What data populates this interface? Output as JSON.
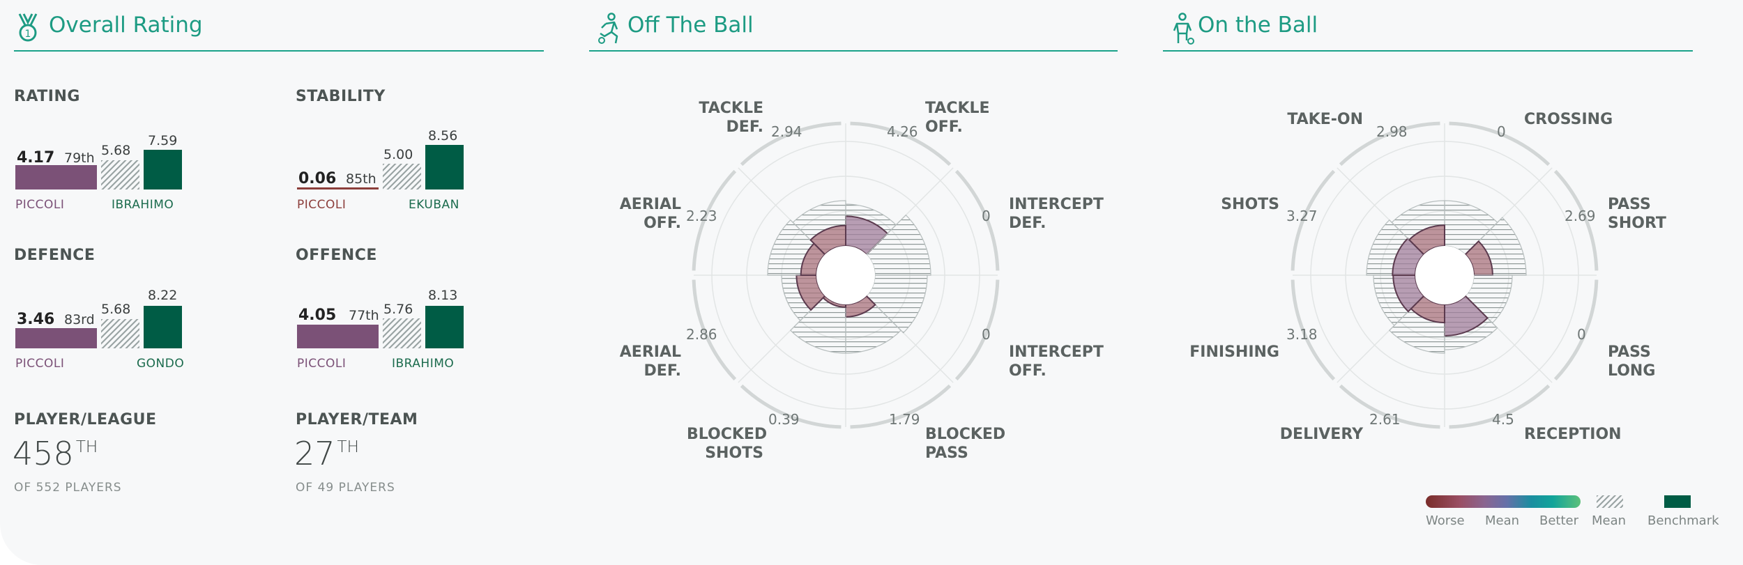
{
  "sections": {
    "overall": {
      "title": "Overall Rating",
      "icon": "medal-icon"
    },
    "off_ball": {
      "title": "Off The Ball",
      "icon": "runner-icon"
    },
    "on_ball": {
      "title": "On the Ball",
      "icon": "player-with-ball-icon"
    }
  },
  "metrics": [
    {
      "label": "RATING",
      "player_value": "4.17",
      "percentile": "79th",
      "mean_value": "5.68",
      "benchmark_value": "7.59",
      "player_name": "PICCOLI",
      "benchmark_name": "IBRAHIMO",
      "player_level": 4.17,
      "mean_level": 5.68,
      "benchmark_level": 7.59
    },
    {
      "label": "STABILITY",
      "player_value": "0.06",
      "percentile": "85th",
      "mean_value": "5.00",
      "benchmark_value": "8.56",
      "player_name": "PICCOLI",
      "benchmark_name": "EKUBAN",
      "player_level": 0.06,
      "mean_level": 5.0,
      "benchmark_level": 8.56
    },
    {
      "label": "DEFENCE",
      "player_value": "3.46",
      "percentile": "83rd",
      "mean_value": "5.68",
      "benchmark_value": "8.22",
      "player_name": "PICCOLI",
      "benchmark_name": "GONDO",
      "player_level": 3.46,
      "mean_level": 5.68,
      "benchmark_level": 8.22
    },
    {
      "label": "OFFENCE",
      "player_value": "4.05",
      "percentile": "77th",
      "mean_value": "5.76",
      "benchmark_value": "8.13",
      "player_name": "PICCOLI",
      "benchmark_name": "IBRAHIMO",
      "player_level": 4.05,
      "mean_level": 5.76,
      "benchmark_level": 8.13
    }
  ],
  "ranks": [
    {
      "label": "PLAYER/LEAGUE",
      "value": "458",
      "suffix": "TH",
      "caption": "OF 552 PLAYERS"
    },
    {
      "label": "PLAYER/TEAM",
      "value": "27",
      "suffix": "TH",
      "caption": "OF 49 PLAYERS"
    }
  ],
  "off_ball": {
    "axes": [
      {
        "line1": "TACKLE",
        "line2": "OFF.",
        "value": "4.26",
        "level": 4.26,
        "mean": 6.0
      },
      {
        "line1": "INTERCEPT",
        "line2": "DEF.",
        "value": "0",
        "level": 0,
        "mean": 8.0
      },
      {
        "line1": "INTERCEPT",
        "line2": "OFF.",
        "value": "0",
        "level": 0,
        "mean": 7.5
      },
      {
        "line1": "BLOCKED",
        "line2": "PASS",
        "value": "1.79",
        "level": 1.79,
        "mean": 7.0
      },
      {
        "line1": "BLOCKED",
        "line2": "SHOTS",
        "value": "0.39",
        "level": 0.39,
        "mean": 7.0
      },
      {
        "line1": "AERIAL",
        "line2": "DEF.",
        "value": "2.86",
        "level": 2.86,
        "mean": 5.0
      },
      {
        "line1": "AERIAL",
        "line2": "OFF.",
        "value": "2.23",
        "level": 2.23,
        "mean": 7.0
      },
      {
        "line1": "TACKLE",
        "line2": "DEF.",
        "value": "2.94",
        "level": 2.94,
        "mean": 6.5
      }
    ]
  },
  "on_ball": {
    "axes": [
      {
        "line1": "CROSSING",
        "line2": "",
        "value": "0",
        "level": 0,
        "mean": 6.5
      },
      {
        "line1": "PASS",
        "line2": "SHORT",
        "value": "2.69",
        "level": 2.69,
        "mean": 7.5
      },
      {
        "line1": "PASS",
        "line2": "LONG",
        "value": "0",
        "level": 0,
        "mean": 5.5
      },
      {
        "line1": "RECEPTION",
        "line2": "",
        "value": "4.5",
        "level": 4.5,
        "mean": 6.5
      },
      {
        "line1": "DELIVERY",
        "line2": "",
        "value": "2.61",
        "level": 2.61,
        "mean": 7.0
      },
      {
        "line1": "FINISHING",
        "line2": "",
        "value": "3.18",
        "level": 3.18,
        "mean": 6.0
      },
      {
        "line1": "SHOTS",
        "line2": "",
        "value": "3.27",
        "level": 3.27,
        "mean": 7.0
      },
      {
        "line1": "TAKE-ON",
        "line2": "",
        "value": "2.98",
        "level": 2.98,
        "mean": 6.5
      }
    ]
  },
  "legend": {
    "worse": "Worse",
    "mean_scale": "Mean",
    "better": "Better",
    "mean_hatch": "Mean",
    "benchmark": "Benchmark"
  },
  "colors": {
    "accent": "#1aa28a",
    "player": "#7b5177",
    "benchmark": "#005c45",
    "worse": "#8c3e3b"
  }
}
